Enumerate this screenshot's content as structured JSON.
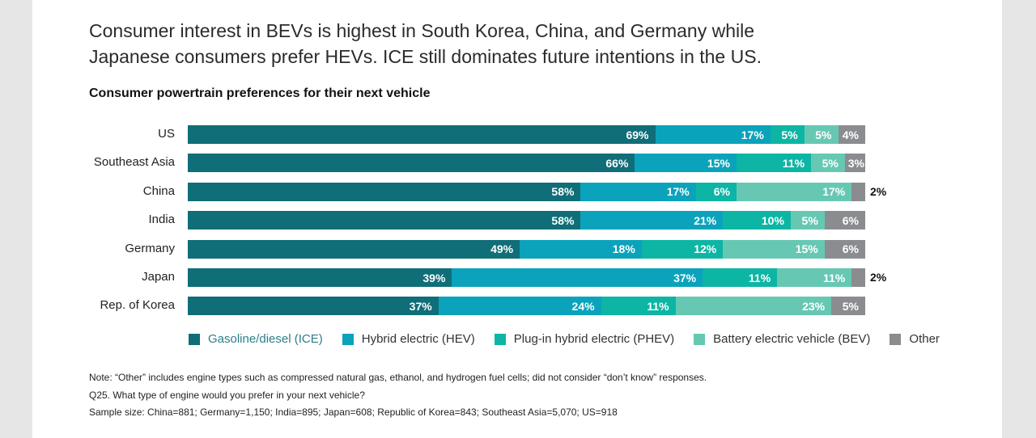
{
  "headline": "Consumer interest in BEVs is highest in South Korea, China, and Germany while Japanese consumers prefer HEVs. ICE still dominates future intentions in the US.",
  "chart_data": {
    "type": "bar",
    "orientation": "horizontal",
    "stacked": true,
    "title": "Consumer powertrain preferences for their next vehicle",
    "categories": [
      "US",
      "Southeast Asia",
      "China",
      "India",
      "Germany",
      "Japan",
      "Rep. of Korea"
    ],
    "series": [
      {
        "name": "Gasoline/diesel (ICE)",
        "color": "#0f6e78",
        "values": [
          69,
          66,
          58,
          58,
          49,
          39,
          37
        ]
      },
      {
        "name": "Hybrid electric (HEV)",
        "color": "#0aa3bb",
        "values": [
          17,
          15,
          17,
          21,
          18,
          37,
          24
        ]
      },
      {
        "name": "Plug-in hybrid electric (PHEV)",
        "color": "#0db5a4",
        "values": [
          5,
          11,
          6,
          10,
          12,
          11,
          11
        ]
      },
      {
        "name": "Battery electric vehicle (BEV)",
        "color": "#66c8b3",
        "values": [
          5,
          5,
          17,
          5,
          15,
          11,
          23
        ]
      },
      {
        "name": "Other",
        "color": "#8a8c8f",
        "values": [
          4,
          3,
          2,
          6,
          6,
          2,
          5
        ]
      }
    ],
    "unit": "%",
    "legend_position": "bottom",
    "grid": false
  },
  "notes": {
    "note": "Note: “Other” includes engine types such as compressed natural gas, ethanol, and hydrogen fuel cells; did not consider “don’t know” responses.",
    "question": "Q25. What type of engine would you prefer in your next vehicle?",
    "sample": "Sample size: China=881; Germany=1,150; India=895; Japan=608; Republic of Korea=843; Southeast Asia=5,070; US=918"
  }
}
